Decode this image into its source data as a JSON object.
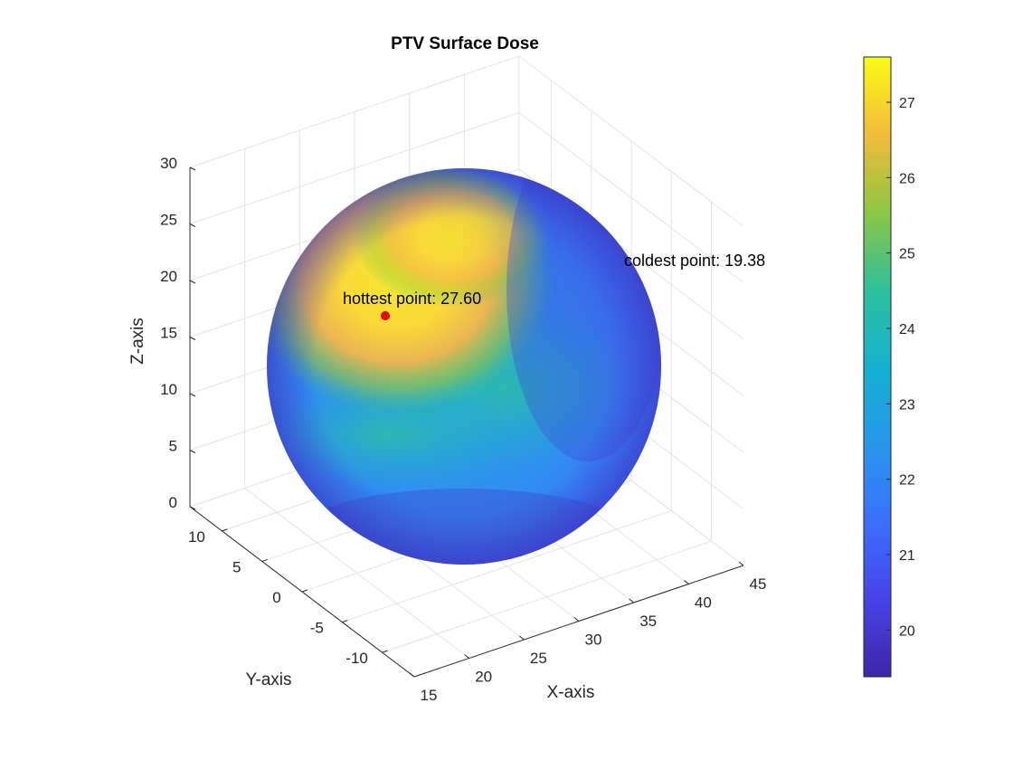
{
  "chart_data": {
    "type": "3d-surface",
    "title": "PTV Surface Dose",
    "xlabel": "X-axis",
    "ylabel": "Y-axis",
    "zlabel": "Z-axis",
    "x_ticks": [
      15,
      20,
      25,
      30,
      35,
      40,
      45
    ],
    "y_ticks": [
      10,
      5,
      0,
      -5,
      -10
    ],
    "z_ticks": [
      0,
      5,
      10,
      15,
      20,
      25,
      30
    ],
    "xlim": [
      15,
      45
    ],
    "ylim": [
      -14,
      14
    ],
    "zlim": [
      0,
      30
    ],
    "grid": true,
    "colormap": "parula",
    "colorbar": {
      "ticks": [
        20,
        21,
        22,
        23,
        24,
        25,
        26,
        27
      ],
      "range": [
        19.38,
        27.6
      ],
      "placement": "right"
    },
    "surface": {
      "shape": "sphere",
      "center": [
        30,
        0,
        15
      ],
      "radius": 14
    },
    "annotations": [
      {
        "label": "hottest point: 27.60",
        "value": 27.6
      },
      {
        "label": "coldest point: 19.38",
        "value": 19.38
      }
    ],
    "markers": [
      {
        "label": "hottest point",
        "color": "#ff0000"
      }
    ]
  }
}
